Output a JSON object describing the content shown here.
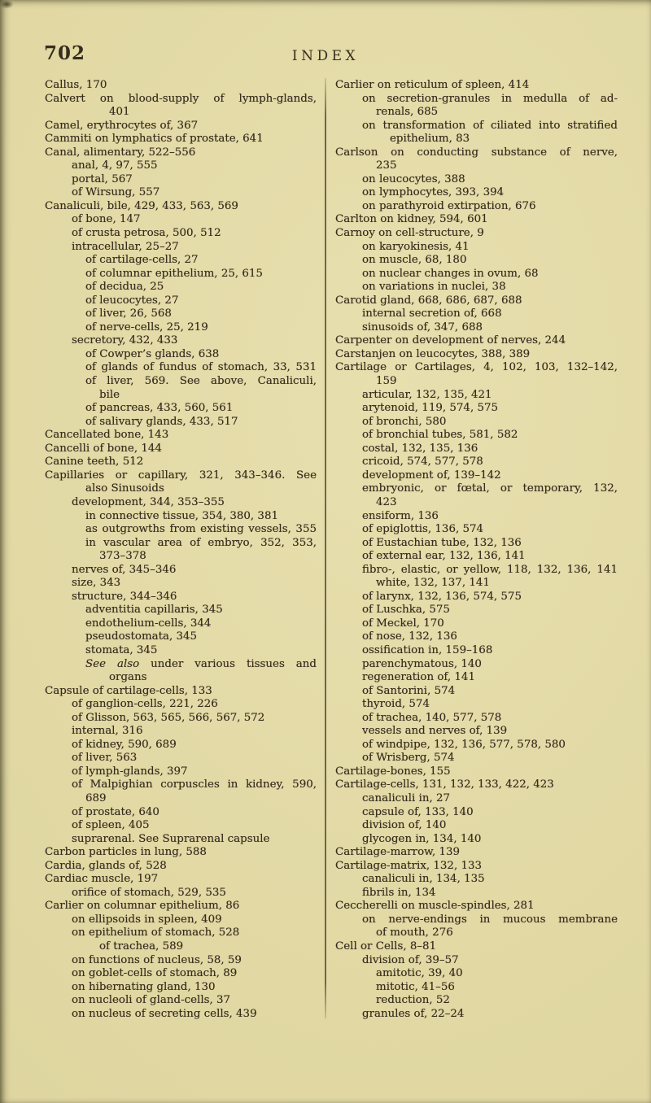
{
  "page": {
    "number": "702",
    "title": "INDEX"
  },
  "colors": {
    "paper": "#e0d7a2",
    "ink": "#372d1e",
    "divider": "#3c3420"
  },
  "columns": {
    "left": [
      {
        "t": "Callus, 170",
        "n": 0
      },
      {
        "t": "Calvert on blood-supply of lymph-glands,",
        "n": 0,
        "j": true
      },
      {
        "t": "401",
        "n": 4
      },
      {
        "t": "Camel, erythrocytes of, 367",
        "n": 0
      },
      {
        "t": "Cammiti on lymphatics of prostate, 641",
        "n": 0
      },
      {
        "t": "Canal, alimentary, 522–556",
        "n": 0
      },
      {
        "t": "anal, 4, 97, 555",
        "n": 1
      },
      {
        "t": "portal, 567",
        "n": 1
      },
      {
        "t": "of Wirsung, 557",
        "n": 1
      },
      {
        "t": "Canaliculi, bile, 429, 433, 563, 569",
        "n": 0
      },
      {
        "t": "of bone, 147",
        "n": 1
      },
      {
        "t": "of crusta petrosa, 500, 512",
        "n": 1
      },
      {
        "t": "intracellular, 25–27",
        "n": 1
      },
      {
        "t": "of cartilage-cells, 27",
        "n": 2
      },
      {
        "t": "of columnar epithelium, 25, 615",
        "n": 2
      },
      {
        "t": "of decidua, 25",
        "n": 2
      },
      {
        "t": "of leucocytes, 27",
        "n": 2
      },
      {
        "t": "of liver, 26, 568",
        "n": 2
      },
      {
        "t": "of nerve-cells, 25, 219",
        "n": 2
      },
      {
        "t": "secretory, 432, 433",
        "n": 1
      },
      {
        "t": "of Cowper’s glands, 638",
        "n": 2
      },
      {
        "t": "of glands of fundus of stomach, 33, 531",
        "n": 2,
        "j": true
      },
      {
        "t": "of liver, 569.  See above, Canaliculi,",
        "n": 2,
        "j": true
      },
      {
        "t": "bile",
        "n": 3
      },
      {
        "t": "of pancreas, 433, 560, 561",
        "n": 2
      },
      {
        "t": "of salivary glands, 433, 517",
        "n": 2
      },
      {
        "t": "Cancellated bone, 143",
        "n": 0
      },
      {
        "t": "Cancelli of bone, 144",
        "n": 0
      },
      {
        "t": "Canine teeth, 512",
        "n": 0
      },
      {
        "t": "Capillaries or capillary, 321, 343–346.  See",
        "n": 0,
        "j": true
      },
      {
        "t": "also Sinusoids",
        "n": 2
      },
      {
        "t": "development, 344, 353–355",
        "n": 1
      },
      {
        "t": "in connective tissue, 354, 380, 381",
        "n": 2
      },
      {
        "t": "as outgrowths from existing vessels, 355",
        "n": 2,
        "j": true
      },
      {
        "t": "in vascular area of embryo, 352, 353,",
        "n": 2,
        "j": true
      },
      {
        "t": "373–378",
        "n": 3
      },
      {
        "t": "nerves of, 345–346",
        "n": 1
      },
      {
        "t": "size, 343",
        "n": 1
      },
      {
        "t": "structure, 344–346",
        "n": 1
      },
      {
        "t": "adventitia capillaris, 345",
        "n": 2
      },
      {
        "t": "endothelium-cells, 344",
        "n": 2
      },
      {
        "t": "pseudostomata, 345",
        "n": 2
      },
      {
        "t": "stomata, 345",
        "n": 2
      },
      {
        "it": "See also ",
        "t": "under various tissues and",
        "n": 2,
        "j": true
      },
      {
        "t": "organs",
        "n": 4
      },
      {
        "t": "Capsule of cartilage-cells, 133",
        "n": 0
      },
      {
        "t": "of ganglion-cells, 221, 226",
        "n": 1
      },
      {
        "t": "of Glisson, 563, 565, 566, 567, 572",
        "n": 1
      },
      {
        "t": "internal, 316",
        "n": 1
      },
      {
        "t": "of kidney, 590, 689",
        "n": 1
      },
      {
        "t": "of liver, 563",
        "n": 1
      },
      {
        "t": "of lymph-glands, 397",
        "n": 1
      },
      {
        "t": "of Malpighian corpuscles in kidney, 590,",
        "n": 1,
        "j": true
      },
      {
        "t": "689",
        "n": 2
      },
      {
        "t": "of prostate, 640",
        "n": 1
      },
      {
        "t": "of spleen, 405",
        "n": 1
      },
      {
        "t": "suprarenal.  See Suprarenal capsule",
        "n": 1
      },
      {
        "t": "Carbon particles in lung, 588",
        "n": 0
      },
      {
        "t": "Cardia, glands of, 528",
        "n": 0
      },
      {
        "t": "Cardiac muscle, 197",
        "n": 0
      },
      {
        "t": "orifice of stomach, 529, 535",
        "n": 1
      },
      {
        "t": "Carlier on columnar epithelium, 86",
        "n": 0
      },
      {
        "t": "on ellipsoids in spleen, 409",
        "n": 1
      },
      {
        "t": "on epithelium of stomach, 528",
        "n": 1
      },
      {
        "t": "of trachea, 589",
        "n": 3
      },
      {
        "t": "on functions of nucleus, 58, 59",
        "n": 1
      },
      {
        "t": "on goblet-cells of stomach, 89",
        "n": 1
      },
      {
        "t": "on hibernating gland, 130",
        "n": 1
      },
      {
        "t": "on nucleoli of gland-cells, 37",
        "n": 1
      },
      {
        "t": "on nucleus of secreting cells, 439",
        "n": 1
      }
    ],
    "right": [
      {
        "t": "Carlier on reticulum of spleen, 414",
        "n": 0
      },
      {
        "t": "on secretion-granules in medulla of ad-",
        "n": 1,
        "j": true
      },
      {
        "t": "renals, 685",
        "n": 2
      },
      {
        "t": "on transformation of ciliated into stratified",
        "n": 1,
        "j": true
      },
      {
        "t": "epithelium, 83",
        "n": 3
      },
      {
        "t": "Carlson on conducting substance of nerve,",
        "n": 0,
        "j": true
      },
      {
        "t": "235",
        "n": 2
      },
      {
        "t": "on leucocytes, 388",
        "n": 1
      },
      {
        "t": "on lymphocytes, 393, 394",
        "n": 1
      },
      {
        "t": "on parathyroid extirpation, 676",
        "n": 1
      },
      {
        "t": "Carlton on kidney, 594, 601",
        "n": 0
      },
      {
        "t": "Carnoy on cell-structure, 9",
        "n": 0
      },
      {
        "t": "on karyokinesis, 41",
        "n": 1
      },
      {
        "t": "on muscle, 68, 180",
        "n": 1
      },
      {
        "t": "on nuclear changes in ovum, 68",
        "n": 1
      },
      {
        "t": "on variations in nuclei, 38",
        "n": 1
      },
      {
        "t": "Carotid gland, 668, 686, 687, 688",
        "n": 0
      },
      {
        "t": "internal secretion of, 668",
        "n": 1
      },
      {
        "t": "sinusoids of, 347, 688",
        "n": 1
      },
      {
        "t": "Carpenter on development of nerves, 244",
        "n": 0
      },
      {
        "t": "Carstanjen on leucocytes, 388, 389",
        "n": 0
      },
      {
        "t": "Cartilage or Cartilages, 4, 102, 103, 132–142,",
        "n": 0,
        "j": true
      },
      {
        "t": "159",
        "n": 2
      },
      {
        "t": "articular, 132, 135, 421",
        "n": 1
      },
      {
        "t": "arytenoid, 119, 574, 575",
        "n": 1
      },
      {
        "t": "of bronchi, 580",
        "n": 1
      },
      {
        "t": "of bronchial tubes, 581, 582",
        "n": 1
      },
      {
        "t": "costal, 132, 135, 136",
        "n": 1
      },
      {
        "t": "cricoid, 574, 577, 578",
        "n": 1
      },
      {
        "t": "development of, 139–142",
        "n": 1
      },
      {
        "t": "embryonic, or fœtal, or temporary, 132,",
        "n": 1,
        "j": true
      },
      {
        "t": "423",
        "n": 2
      },
      {
        "t": "ensiform, 136",
        "n": 1
      },
      {
        "t": "of epiglottis, 136, 574",
        "n": 1
      },
      {
        "t": "of Eustachian tube, 132, 136",
        "n": 1
      },
      {
        "t": "of external ear, 132, 136, 141",
        "n": 1
      },
      {
        "t": "fibro-, elastic, or yellow, 118, 132, 136, 141",
        "n": 1,
        "j": true
      },
      {
        "t": "white, 132, 137, 141",
        "n": 2
      },
      {
        "t": "of larynx, 132, 136, 574, 575",
        "n": 1
      },
      {
        "t": "of Luschka, 575",
        "n": 1
      },
      {
        "t": "of Meckel, 170",
        "n": 1
      },
      {
        "t": "of nose, 132, 136",
        "n": 1
      },
      {
        "t": "ossification in, 159–168",
        "n": 1
      },
      {
        "t": "parenchymatous, 140",
        "n": 1
      },
      {
        "t": "regeneration of, 141",
        "n": 1
      },
      {
        "t": "of Santorini, 574",
        "n": 1
      },
      {
        "t": "thyroid, 574",
        "n": 1
      },
      {
        "t": "of trachea, 140, 577, 578",
        "n": 1
      },
      {
        "t": "vessels and nerves of, 139",
        "n": 1
      },
      {
        "t": "of windpipe, 132, 136, 577, 578, 580",
        "n": 1
      },
      {
        "t": "of Wrisberg, 574",
        "n": 1
      },
      {
        "t": "Cartilage-bones, 155",
        "n": 0
      },
      {
        "t": "Cartilage-cells, 131, 132, 133, 422, 423",
        "n": 0
      },
      {
        "t": "canaliculi in, 27",
        "n": 1
      },
      {
        "t": "capsule of, 133, 140",
        "n": 1
      },
      {
        "t": "division of, 140",
        "n": 1
      },
      {
        "t": "glycogen in, 134, 140",
        "n": 1
      },
      {
        "t": "Cartilage-marrow, 139",
        "n": 0
      },
      {
        "t": "Cartilage-matrix, 132, 133",
        "n": 0
      },
      {
        "t": "canaliculi in, 134, 135",
        "n": 1
      },
      {
        "t": "fibrils in, 134",
        "n": 1
      },
      {
        "t": "Ceccherelli on muscle-spindles, 281",
        "n": 0
      },
      {
        "t": "on nerve-endings in mucous membrane",
        "n": 1,
        "j": true
      },
      {
        "t": "of mouth, 276",
        "n": 2
      },
      {
        "t": "Cell or Cells, 8–81",
        "n": 0
      },
      {
        "t": "division of, 39–57",
        "n": 1
      },
      {
        "t": "amitotic, 39, 40",
        "n": 2
      },
      {
        "t": "mitotic, 41–56",
        "n": 2
      },
      {
        "t": "reduction, 52",
        "n": 2
      },
      {
        "t": "granules of, 22–24",
        "n": 1
      }
    ]
  }
}
